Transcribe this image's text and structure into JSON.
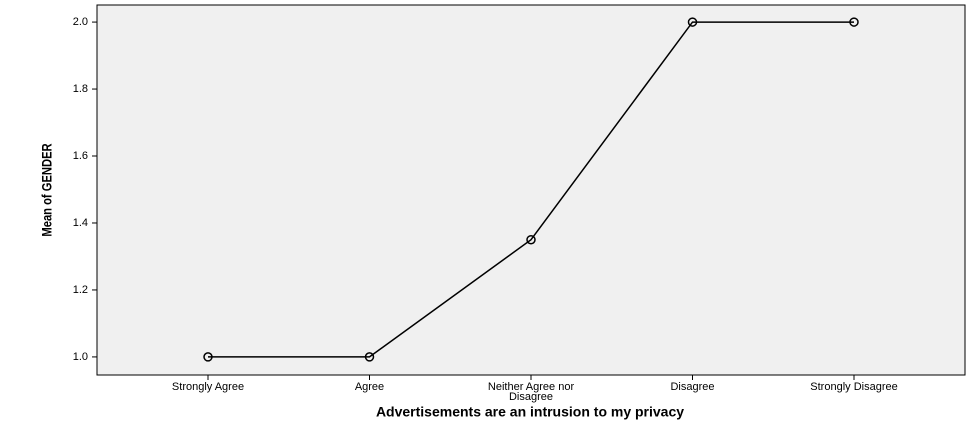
{
  "chart_data": {
    "type": "line",
    "x_label": "Advertisements are an intrusion to my privacy",
    "y_label": "Mean of GENDER",
    "categories": [
      "Strongly Agree",
      "Agree",
      "Neither Agree nor Disagree",
      "Disagree",
      "Strongly Disagree"
    ],
    "series": [
      {
        "name": "Mean of GENDER",
        "color": "#000000",
        "values": [
          1.0,
          1.0,
          1.35,
          2.0,
          2.0
        ]
      }
    ],
    "ylim": [
      0.946,
      2.051
    ],
    "yticks": [
      {
        "value": 1.0,
        "label": "1.0"
      },
      {
        "value": 1.2,
        "label": "1.2"
      },
      {
        "value": 1.4,
        "label": "1.4"
      },
      {
        "value": 1.6,
        "label": "1.6"
      },
      {
        "value": 1.8,
        "label": "1.8"
      },
      {
        "value": 2.0,
        "label": "2.0"
      }
    ],
    "grid": false
  }
}
